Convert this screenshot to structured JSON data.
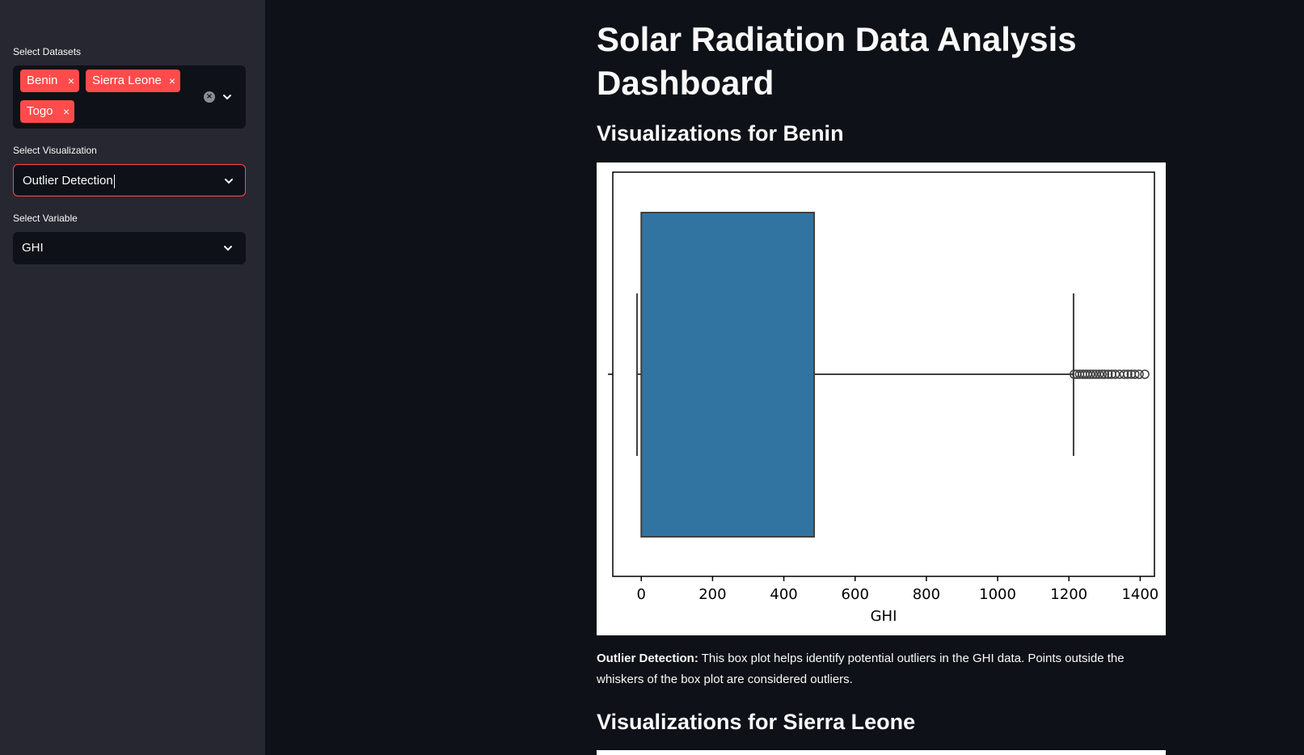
{
  "sidebar": {
    "datasets": {
      "label": "Select Datasets",
      "tags": [
        "Benin",
        "Sierra Leone",
        "Togo"
      ],
      "remove_glyph": "×"
    },
    "visualization": {
      "label": "Select Visualization",
      "value": "Outlier Detection"
    },
    "variable": {
      "label": "Select Variable",
      "value": "GHI"
    }
  },
  "main": {
    "title": "Solar Radiation Data Analysis Dashboard",
    "sections": [
      {
        "heading": "Visualizations for Benin",
        "description_bold": "Outlier Detection:",
        "description": " This box plot helps identify potential outliers in the GHI data. Points outside the whiskers of the box plot are considered outliers."
      },
      {
        "heading": "Visualizations for Sierra Leone"
      }
    ]
  },
  "colors": {
    "accent": "#ff4b4b",
    "box_fill": "#3274a1",
    "sidebar_bg": "#262730",
    "app_bg": "#0e1117"
  },
  "chart_data": {
    "type": "box",
    "orientation": "horizontal",
    "xlabel": "GHI",
    "xlim": [
      -80,
      1440
    ],
    "xticks": [
      0,
      200,
      400,
      600,
      800,
      1000,
      1200,
      1400
    ],
    "box": {
      "whisker_low": -12,
      "q1": 0,
      "q3": 485,
      "whisker_high": 1213
    },
    "outliers": [
      1215,
      1222,
      1230,
      1238,
      1245,
      1252,
      1260,
      1268,
      1276,
      1285,
      1293,
      1300,
      1310,
      1320,
      1330,
      1342,
      1355,
      1365,
      1375,
      1385,
      1397,
      1413
    ]
  }
}
